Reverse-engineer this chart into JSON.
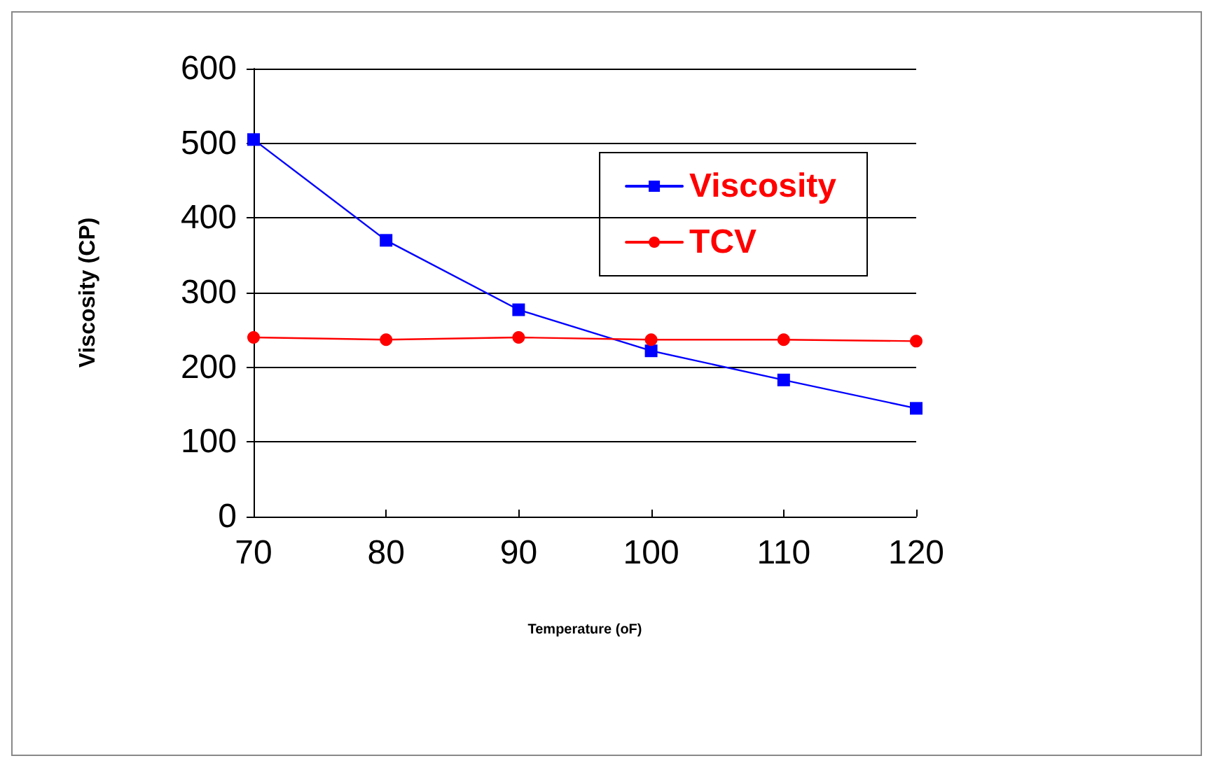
{
  "chart_data": {
    "type": "line",
    "xlabel": "Temperature (oF)",
    "ylabel": "Viscosity (CP)",
    "x": [
      70,
      80,
      90,
      100,
      110,
      120
    ],
    "series": [
      {
        "name": "Viscosity",
        "color": "#0000ff",
        "marker": "square",
        "values": [
          505,
          370,
          277,
          222,
          183,
          145
        ]
      },
      {
        "name": "TCV",
        "color": "#ff0000",
        "marker": "circle",
        "values": [
          240,
          237,
          240,
          237,
          237,
          235
        ]
      }
    ],
    "xlim": [
      70,
      120
    ],
    "xticks": [
      70,
      80,
      90,
      100,
      110,
      120
    ],
    "ylim": [
      0,
      600
    ],
    "yticks": [
      0,
      100,
      200,
      300,
      400,
      500,
      600
    ],
    "grid": "y",
    "legend": "top right",
    "line_style": "solid"
  }
}
